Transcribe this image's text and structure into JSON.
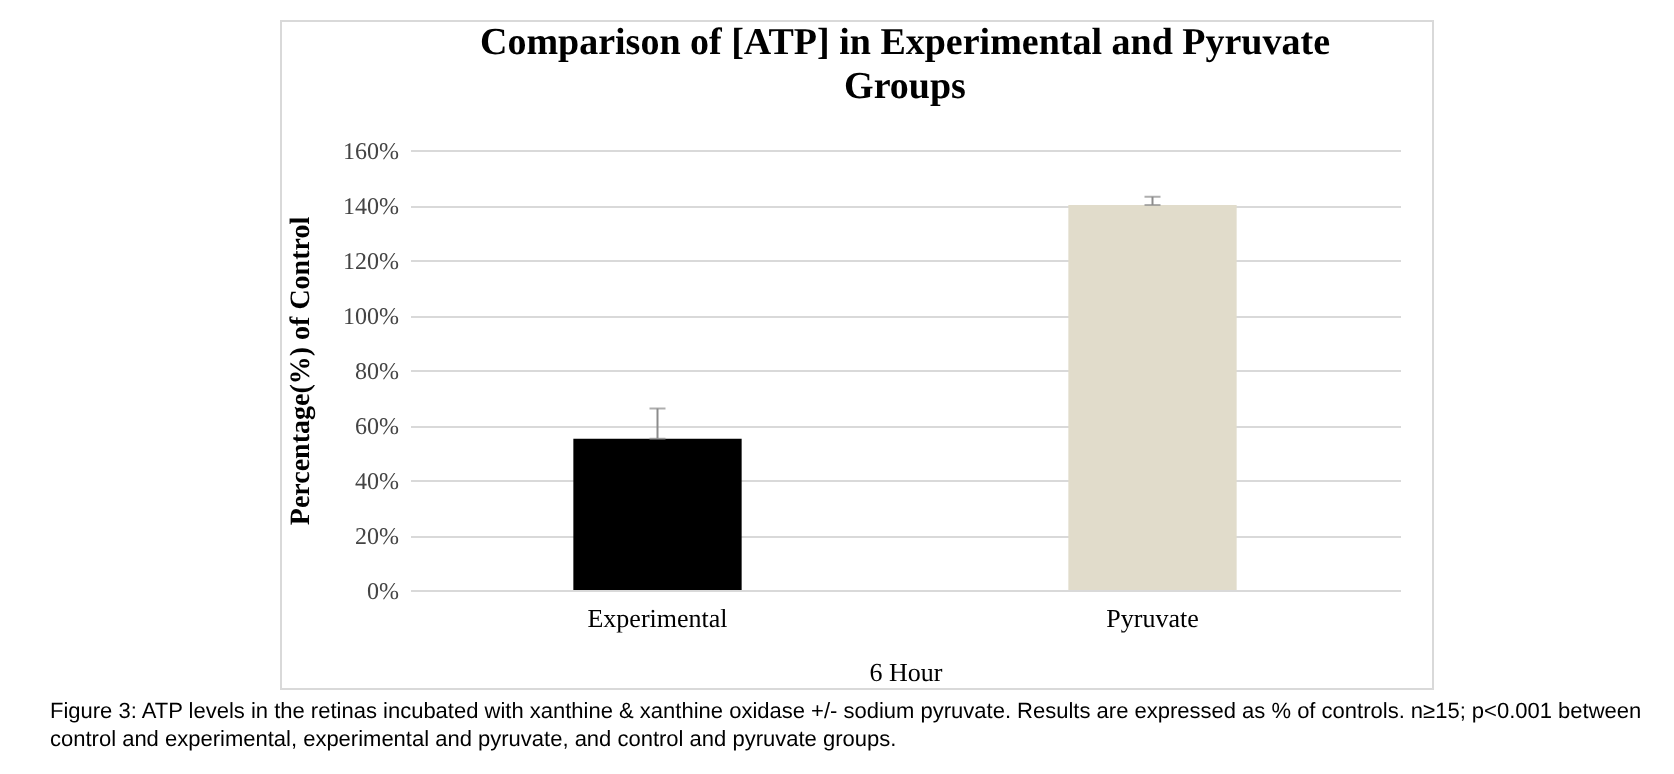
{
  "chart_data": {
    "type": "bar",
    "title": "Comparison of [ATP] in Experimental and Pyruvate Groups",
    "xlabel": "6 Hour",
    "ylabel": "Percentage(%) of Control",
    "categories": [
      "Experimental",
      "Pyruvate"
    ],
    "values": [
      55,
      140
    ],
    "colors": [
      "#000000",
      "#e1dccb"
    ],
    "errors": [
      [
        55,
        66
      ],
      [
        140,
        143
      ]
    ],
    "ylim": [
      0,
      160
    ],
    "yticks": [
      {
        "value": 0,
        "label": "0%"
      },
      {
        "value": 20,
        "label": "20%"
      },
      {
        "value": 40,
        "label": "40%"
      },
      {
        "value": 60,
        "label": "60%"
      },
      {
        "value": 80,
        "label": "80%"
      },
      {
        "value": 100,
        "label": "100%"
      },
      {
        "value": 120,
        "label": "120%"
      },
      {
        "value": 140,
        "label": "140%"
      },
      {
        "value": 160,
        "label": "160%"
      }
    ],
    "grid": "y",
    "annotations": [
      "Figure 3: ATP levels in the retinas incubated with xanthine & xanthine oxidase +/- sodium pyruvate. Results are expressed as % of controls. n≥15; p<0.001 between control and experimental, experimental and pyruvate, and control and pyruvate groups."
    ]
  }
}
